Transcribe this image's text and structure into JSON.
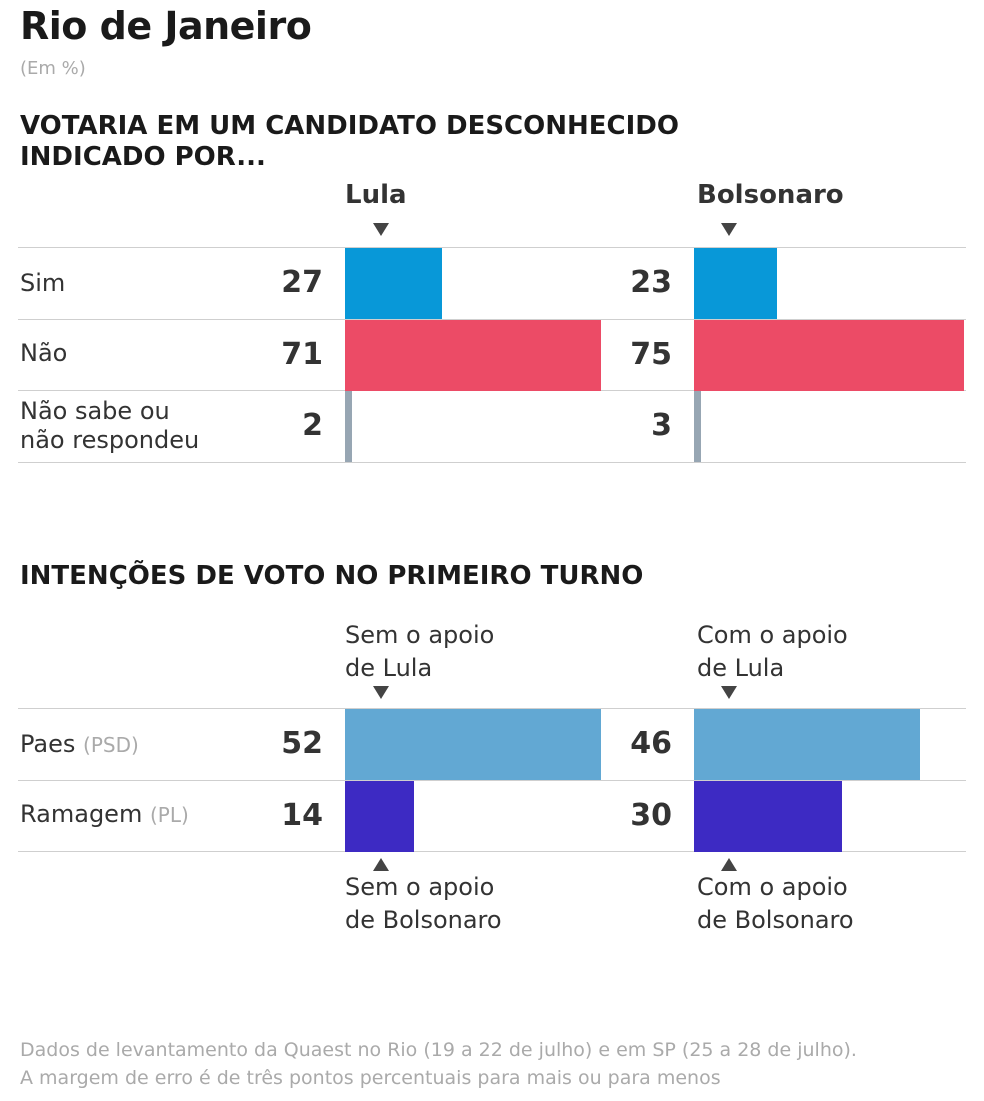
{
  "header": {
    "title": "Rio de Janeiro",
    "subtitle": "(Em %)"
  },
  "colors": {
    "sim": "#0898d8",
    "nao": "#ec4b66",
    "nao_sabe": "#97a6b3",
    "paes": "#62a8d3",
    "ramagem": "#3d2ac3"
  },
  "chart_data": [
    {
      "type": "bar",
      "title": "VOTARIA EM UM CANDIDATO DESCONHECIDO INDICADO POR...",
      "categories": [
        "Sim",
        "Não",
        "Não sabe ou não respondeu"
      ],
      "series": [
        {
          "name": "Lula",
          "values": [
            27,
            71,
            2
          ]
        },
        {
          "name": "Bolsonaro",
          "values": [
            23,
            75,
            3
          ]
        }
      ],
      "xlim": [
        0,
        100
      ]
    },
    {
      "type": "bar",
      "title": "INTENÇÕES DE VOTO NO PRIMEIRO TURNO",
      "categories": [
        "Paes",
        "Ramagem"
      ],
      "category_parties": [
        "(PSD)",
        "(PL)"
      ],
      "series": [
        {
          "name": "Sem o apoio de Lula / Sem o apoio de Bolsonaro",
          "values": [
            52,
            14
          ]
        },
        {
          "name": "Com o apoio de Lula / Com o apoio de Bolsonaro",
          "values": [
            46,
            30
          ]
        }
      ],
      "xlim": [
        0,
        100
      ]
    }
  ],
  "section1": {
    "title_line1": "VOTARIA EM UM CANDIDATO DESCONHECIDO",
    "title_line2": "INDICADO POR...",
    "col_left": "Lula",
    "col_right": "Bolsonaro",
    "rows": [
      {
        "label_line1": "Sim",
        "label_line2": ""
      },
      {
        "label_line1": "Não",
        "label_line2": ""
      },
      {
        "label_line1": "Não sabe ou",
        "label_line2": "não respondeu"
      }
    ]
  },
  "section2": {
    "title": "INTENÇÕES DE VOTO NO PRIMEIRO TURNO",
    "top_left_line1": "Sem o apoio",
    "top_left_line2": "de Lula",
    "top_right_line1": "Com o apoio",
    "top_right_line2": "de Lula",
    "bottom_left_line1": "Sem o apoio",
    "bottom_left_line2": "de Bolsonaro",
    "bottom_right_line1": "Com o apoio",
    "bottom_right_line2": "de Bolsonaro",
    "rows": [
      {
        "name": "Paes",
        "party": "(PSD)"
      },
      {
        "name": "Ramagem",
        "party": "(PL)"
      }
    ]
  },
  "footer": {
    "line1": "Dados de levantamento da Quaest no Rio (19 a 22 de julho) e em SP (25 a 28 de julho).",
    "line2": "A margem de erro é de três pontos percentuais para mais ou para menos"
  }
}
